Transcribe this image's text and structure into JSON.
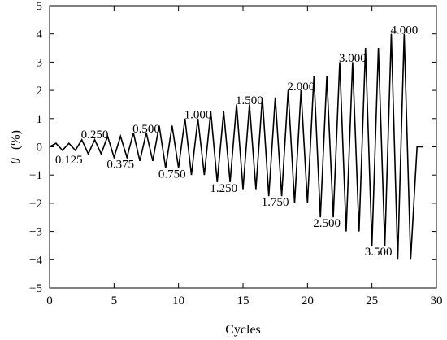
{
  "chart_data": {
    "type": "line",
    "title": "",
    "xlabel": "Cycles",
    "ylabel_symbol": "θ",
    "ylabel_unit": "(%)",
    "xlim": [
      0,
      30
    ],
    "ylim": [
      -5,
      5
    ],
    "xticks": [
      0,
      5,
      10,
      15,
      20,
      25,
      30
    ],
    "yticks": [
      -5,
      -4,
      -3,
      -2,
      -1,
      0,
      1,
      2,
      3,
      4,
      5
    ],
    "grid": false,
    "series": [
      {
        "points": [
          [
            0,
            0
          ],
          [
            0.5,
            0.125
          ],
          [
            1,
            -0.125
          ],
          [
            1.5,
            0.125
          ],
          [
            2,
            -0.125
          ],
          [
            2.5,
            0.25
          ],
          [
            3,
            -0.25
          ],
          [
            3.5,
            0.25
          ],
          [
            4,
            -0.25
          ],
          [
            4.5,
            0.375
          ],
          [
            5,
            -0.375
          ],
          [
            5.5,
            0.375
          ],
          [
            6,
            -0.375
          ],
          [
            6.5,
            0.5
          ],
          [
            7,
            -0.5
          ],
          [
            7.5,
            0.5
          ],
          [
            8,
            -0.5
          ],
          [
            8.5,
            0.75
          ],
          [
            9,
            -0.75
          ],
          [
            9.5,
            0.75
          ],
          [
            10,
            -0.75
          ],
          [
            10.5,
            1.0
          ],
          [
            11,
            -1.0
          ],
          [
            11.5,
            1.0
          ],
          [
            12,
            -1.0
          ],
          [
            12.5,
            1.25
          ],
          [
            13,
            -1.25
          ],
          [
            13.5,
            1.25
          ],
          [
            14,
            -1.25
          ],
          [
            14.5,
            1.5
          ],
          [
            15,
            -1.5
          ],
          [
            15.5,
            1.5
          ],
          [
            16,
            -1.5
          ],
          [
            16.5,
            1.75
          ],
          [
            17,
            -1.75
          ],
          [
            17.5,
            1.75
          ],
          [
            18,
            -1.75
          ],
          [
            18.5,
            2.0
          ],
          [
            19,
            -2.0
          ],
          [
            19.5,
            2.0
          ],
          [
            20,
            -2.0
          ],
          [
            20.5,
            2.5
          ],
          [
            21,
            -2.5
          ],
          [
            21.5,
            2.5
          ],
          [
            22,
            -2.5
          ],
          [
            22.5,
            3.0
          ],
          [
            23,
            -3.0
          ],
          [
            23.5,
            3.0
          ],
          [
            24,
            -3.0
          ],
          [
            24.5,
            3.5
          ],
          [
            25,
            -3.5
          ],
          [
            25.5,
            3.5
          ],
          [
            26,
            -3.5
          ],
          [
            26.5,
            4.0
          ],
          [
            27,
            -4.0
          ],
          [
            27.5,
            4.0
          ],
          [
            28,
            -4.0
          ],
          [
            28.5,
            0
          ],
          [
            29,
            0
          ]
        ]
      }
    ],
    "annotations": [
      {
        "text": "0.125",
        "x": 1.5,
        "y": -0.45
      },
      {
        "text": "0.250",
        "x": 3.5,
        "y": 0.45
      },
      {
        "text": "0.375",
        "x": 5.5,
        "y": -0.6
      },
      {
        "text": "0.500",
        "x": 7.5,
        "y": 0.65
      },
      {
        "text": "0.750",
        "x": 9.5,
        "y": -0.95
      },
      {
        "text": "1.000",
        "x": 11.5,
        "y": 1.15
      },
      {
        "text": "1.250",
        "x": 13.5,
        "y": -1.45
      },
      {
        "text": "1.500",
        "x": 15.5,
        "y": 1.65
      },
      {
        "text": "1.750",
        "x": 17.5,
        "y": -1.95
      },
      {
        "text": "2.000",
        "x": 19.5,
        "y": 2.15
      },
      {
        "text": "2.500",
        "x": 21.5,
        "y": -2.7
      },
      {
        "text": "3.000",
        "x": 23.5,
        "y": 3.15
      },
      {
        "text": "3.500",
        "x": 25.5,
        "y": -3.7
      },
      {
        "text": "4.000",
        "x": 27.5,
        "y": 4.15
      }
    ]
  }
}
